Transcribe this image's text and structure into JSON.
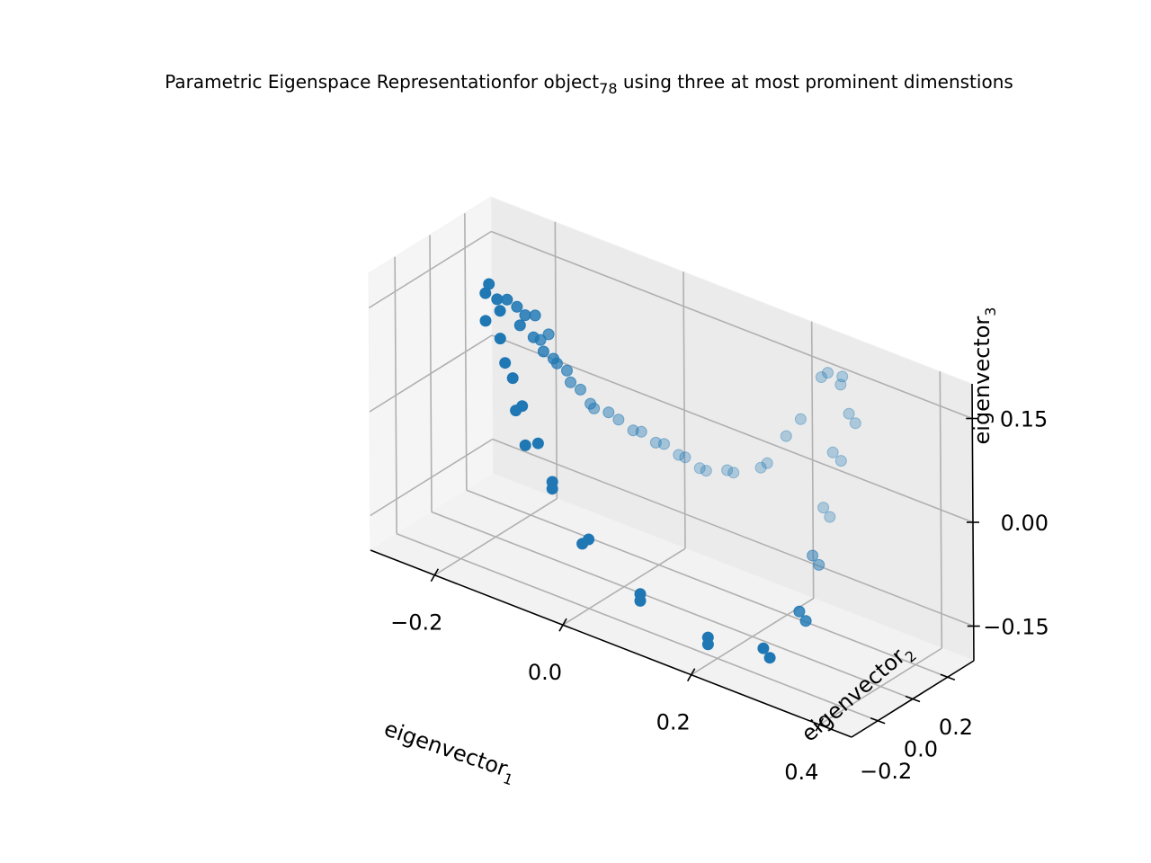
{
  "chart_data": {
    "type": "scatter",
    "title_main": "Parametric Eigenspace Representationfor object",
    "title_sub": "78",
    "title_rest": " using three at most prominent dimenstions",
    "xlabel": "eigenvector",
    "xlabel_sub": "1",
    "ylabel": "eigenvector",
    "ylabel_sub": "2",
    "zlabel": "eigenvector",
    "zlabel_sub": "3",
    "x_ticks": [
      "−0.2",
      "0.0",
      "0.2",
      "0.4"
    ],
    "y_ticks": [
      "−0.2",
      "0.0",
      "0.2"
    ],
    "z_ticks": [
      "−0.15",
      "0.00",
      "0.15"
    ],
    "xlim": [
      -0.3,
      0.45
    ],
    "ylim": [
      -0.35,
      0.35
    ],
    "zlim": [
      -0.2,
      0.2
    ],
    "grid": true,
    "marker_color": "#1f77b4",
    "points": [
      {
        "x": -0.2,
        "y": -0.05,
        "z": 0.16
      },
      {
        "x": -0.2,
        "y": -0.03,
        "z": 0.17
      },
      {
        "x": -0.18,
        "y": -0.04,
        "z": 0.14
      },
      {
        "x": -0.2,
        "y": -0.05,
        "z": 0.12
      },
      {
        "x": -0.19,
        "y": -0.02,
        "z": 0.15
      },
      {
        "x": -0.18,
        "y": 0.0,
        "z": 0.15
      },
      {
        "x": -0.17,
        "y": 0.02,
        "z": 0.14
      },
      {
        "x": -0.16,
        "y": 0.03,
        "z": 0.13
      },
      {
        "x": -0.15,
        "y": 0.05,
        "z": 0.13
      },
      {
        "x": -0.18,
        "y": -0.04,
        "z": 0.1
      },
      {
        "x": -0.17,
        "y": -0.05,
        "z": 0.07
      },
      {
        "x": -0.16,
        "y": 0.0,
        "z": 0.12
      },
      {
        "x": -0.15,
        "y": 0.04,
        "z": 0.1
      },
      {
        "x": -0.14,
        "y": 0.06,
        "z": 0.08
      },
      {
        "x": -0.13,
        "y": 0.08,
        "z": 0.07
      },
      {
        "x": -0.13,
        "y": 0.1,
        "z": 0.06
      },
      {
        "x": -0.12,
        "y": 0.12,
        "z": 0.05
      },
      {
        "x": -0.15,
        "y": 0.08,
        "z": 0.09
      },
      {
        "x": -0.14,
        "y": 0.09,
        "z": 0.1
      },
      {
        "x": -0.12,
        "y": 0.14,
        "z": 0.03
      },
      {
        "x": -0.11,
        "y": 0.16,
        "z": 0.02
      },
      {
        "x": -0.1,
        "y": 0.18,
        "z": 0.0
      },
      {
        "x": -0.1,
        "y": 0.2,
        "z": -0.01
      },
      {
        "x": -0.08,
        "y": 0.21,
        "z": -0.01
      },
      {
        "x": -0.07,
        "y": 0.23,
        "z": -0.02
      },
      {
        "x": -0.05,
        "y": 0.24,
        "z": -0.03
      },
      {
        "x": -0.04,
        "y": 0.25,
        "z": -0.03
      },
      {
        "x": -0.02,
        "y": 0.26,
        "z": -0.04
      },
      {
        "x": -0.01,
        "y": 0.27,
        "z": -0.04
      },
      {
        "x": 0.01,
        "y": 0.28,
        "z": -0.05
      },
      {
        "x": 0.02,
        "y": 0.28,
        "z": -0.05
      },
      {
        "x": 0.04,
        "y": 0.29,
        "z": -0.06
      },
      {
        "x": 0.05,
        "y": 0.29,
        "z": -0.06
      },
      {
        "x": 0.08,
        "y": 0.3,
        "z": -0.05
      },
      {
        "x": 0.09,
        "y": 0.3,
        "z": -0.05
      },
      {
        "x": 0.13,
        "y": 0.31,
        "z": -0.03
      },
      {
        "x": 0.14,
        "y": 0.31,
        "z": -0.02
      },
      {
        "x": 0.17,
        "y": 0.31,
        "z": 0.03
      },
      {
        "x": 0.19,
        "y": 0.32,
        "z": 0.06
      },
      {
        "x": 0.22,
        "y": 0.33,
        "z": 0.13
      },
      {
        "x": 0.23,
        "y": 0.33,
        "z": 0.14
      },
      {
        "x": 0.25,
        "y": 0.34,
        "z": 0.14
      },
      {
        "x": 0.25,
        "y": 0.33,
        "z": 0.13
      },
      {
        "x": 0.26,
        "y": 0.34,
        "z": 0.09
      },
      {
        "x": 0.27,
        "y": 0.34,
        "z": 0.08
      },
      {
        "x": 0.24,
        "y": 0.32,
        "z": 0.03
      },
      {
        "x": 0.25,
        "y": 0.33,
        "z": 0.02
      },
      {
        "x": 0.23,
        "y": 0.3,
        "z": -0.05
      },
      {
        "x": 0.24,
        "y": 0.3,
        "z": -0.06
      },
      {
        "x": 0.24,
        "y": 0.2,
        "z": -0.1
      },
      {
        "x": 0.25,
        "y": 0.2,
        "z": -0.11
      },
      {
        "x": 0.26,
        "y": 0.05,
        "z": -0.15
      },
      {
        "x": 0.27,
        "y": 0.05,
        "z": -0.16
      },
      {
        "x": 0.25,
        "y": -0.12,
        "z": -0.18
      },
      {
        "x": 0.26,
        "y": -0.12,
        "z": -0.19
      },
      {
        "x": 0.18,
        "y": -0.18,
        "z": -0.18
      },
      {
        "x": 0.18,
        "y": -0.18,
        "z": -0.19
      },
      {
        "x": 0.08,
        "y": -0.2,
        "z": -0.15
      },
      {
        "x": 0.08,
        "y": -0.2,
        "z": -0.16
      },
      {
        "x": 0.0,
        "y": -0.2,
        "z": -0.1
      },
      {
        "x": -0.01,
        "y": -0.2,
        "z": -0.11
      },
      {
        "x": -0.07,
        "y": -0.15,
        "z": -0.05
      },
      {
        "x": -0.07,
        "y": -0.15,
        "z": -0.06
      },
      {
        "x": -0.1,
        "y": -0.12,
        "z": -0.01
      },
      {
        "x": -0.12,
        "y": -0.12,
        "z": -0.02
      },
      {
        "x": -0.13,
        "y": -0.1,
        "z": 0.03
      },
      {
        "x": -0.14,
        "y": -0.1,
        "z": 0.02
      },
      {
        "x": -0.15,
        "y": -0.08,
        "z": 0.06
      }
    ]
  }
}
